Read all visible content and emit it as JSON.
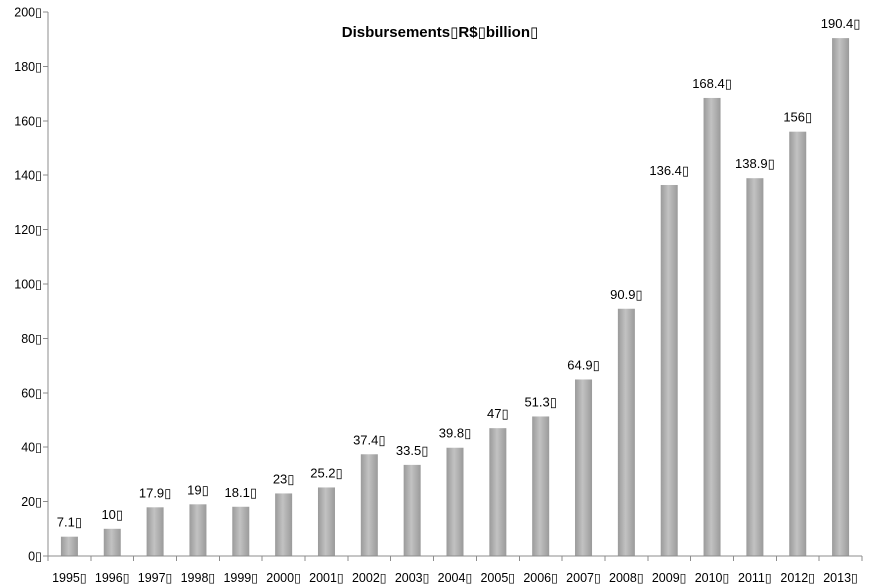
{
  "chart_data": {
    "type": "bar",
    "title": "Disbursements▯R$▯billion▯",
    "xlabel": "",
    "ylabel": "",
    "categories": [
      "1995▯",
      "1996▯",
      "1997▯",
      "1998▯",
      "1999▯",
      "2000▯",
      "2001▯",
      "2002▯",
      "2003▯",
      "2004▯",
      "2005▯",
      "2006▯",
      "2007▯",
      "2008▯",
      "2009▯",
      "2010▯",
      "2011▯",
      "2012▯",
      "2013▯"
    ],
    "values": [
      7.1,
      10,
      17.9,
      19,
      18.1,
      23,
      25.2,
      37.4,
      33.5,
      39.8,
      47,
      51.3,
      64.9,
      90.9,
      136.4,
      168.4,
      138.9,
      156,
      190.4
    ],
    "value_labels": [
      "7.1▯",
      "10▯",
      "17.9▯",
      "19▯",
      "18.1▯",
      "23▯",
      "25.2▯",
      "37.4▯",
      "33.5▯",
      "39.8▯",
      "47▯",
      "51.3▯",
      "64.9▯",
      "90.9▯",
      "136.4▯",
      "168.4▯",
      "138.9▯",
      "156▯",
      "190.4▯"
    ],
    "ylim": [
      0,
      200
    ],
    "yticks": [
      0,
      20,
      40,
      60,
      80,
      100,
      120,
      140,
      160,
      180,
      200
    ],
    "ytick_labels": [
      "0▯",
      "20▯",
      "40▯",
      "60▯",
      "80▯",
      "100▯",
      "120▯",
      "140▯",
      "160▯",
      "180▯",
      "200▯"
    ],
    "grid": false,
    "legend": "none",
    "bar_color": "#a6a6a6"
  }
}
